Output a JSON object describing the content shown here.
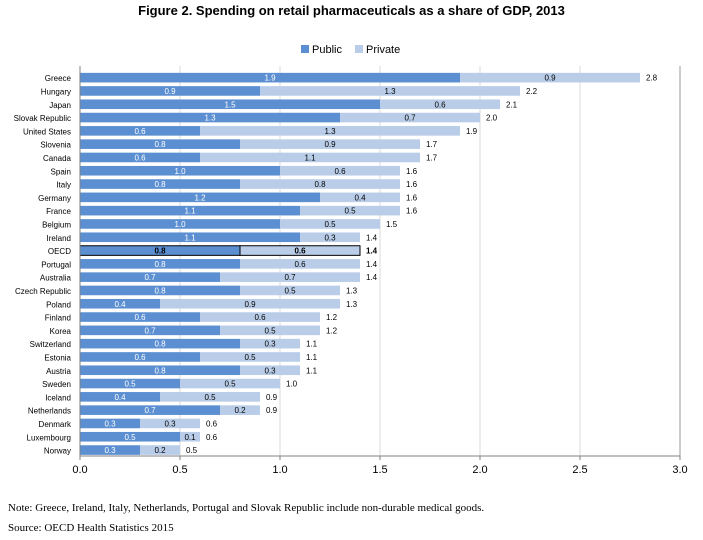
{
  "chart_data": {
    "type": "bar",
    "orientation": "horizontal",
    "stacked": true,
    "title": "Figure 2. Spending on retail pharmaceuticals as a share of GDP, 2013",
    "categories": [
      "Greece",
      "Hungary",
      "Japan",
      "Slovak Republic",
      "United States",
      "Slovenia",
      "Canada",
      "Spain",
      "Italy",
      "Germany",
      "France",
      "Belgium",
      "Ireland",
      "OECD",
      "Portugal",
      "Australia",
      "Czech Republic",
      "Poland",
      "Finland",
      "Korea",
      "Switzerland",
      "Estonia",
      "Austria",
      "Sweden",
      "Iceland",
      "Netherlands",
      "Denmark",
      "Luxembourg",
      "Norway"
    ],
    "series": [
      {
        "name": "Public",
        "color": "#5b8fd1",
        "values": [
          1.9,
          0.9,
          1.5,
          1.3,
          0.6,
          0.8,
          0.6,
          1.0,
          0.8,
          1.2,
          1.1,
          1.0,
          1.1,
          0.8,
          0.8,
          0.7,
          0.8,
          0.4,
          0.6,
          0.7,
          0.8,
          0.6,
          0.8,
          0.5,
          0.4,
          0.7,
          0.3,
          0.5,
          0.3
        ]
      },
      {
        "name": "Private",
        "color": "#b9cde9",
        "values": [
          0.9,
          1.3,
          0.6,
          0.7,
          1.3,
          0.9,
          1.1,
          0.6,
          0.8,
          0.4,
          0.5,
          0.5,
          0.3,
          0.6,
          0.6,
          0.7,
          0.5,
          0.9,
          0.6,
          0.5,
          0.3,
          0.5,
          0.3,
          0.5,
          0.5,
          0.2,
          0.3,
          0.1,
          0.2
        ]
      }
    ],
    "totals": [
      "2.8",
      "2.2",
      "2.1",
      "2.0",
      "1.9",
      "1.7",
      "1.7",
      "1.6",
      "1.6",
      "1.6",
      "1.6",
      "1.5",
      "1.4",
      "1.4",
      "1.4",
      "1.4",
      "1.3",
      "1.3",
      "1.2",
      "1.2",
      "1.1",
      "1.1",
      "1.1",
      "1.0",
      "0.9",
      "0.9",
      "0.6",
      "0.6",
      "0.5"
    ],
    "highlight": "OECD",
    "xlim": [
      0,
      3.0
    ],
    "xticks": [
      "0.0",
      "0.5",
      "1.0",
      "1.5",
      "2.0",
      "2.5",
      "3.0"
    ],
    "legend_position": "top-right",
    "grid": "vertical"
  },
  "note": "Note: Greece, Ireland, Italy, Netherlands, Portugal and Slovak Republic include non-durable medical goods.",
  "source": "Source: OECD Health Statistics 2015"
}
